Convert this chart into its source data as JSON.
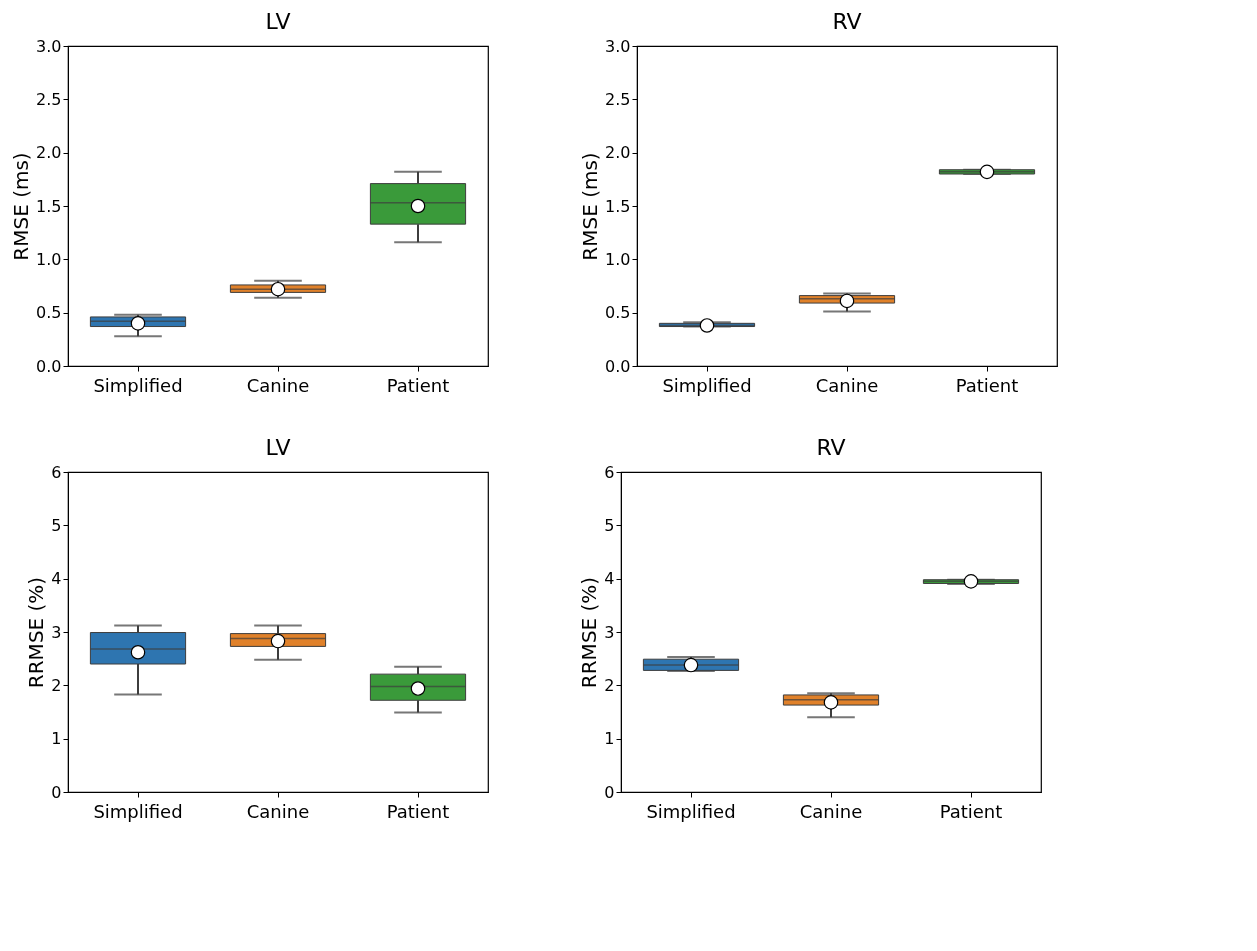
{
  "chart_data": [
    {
      "type": "box",
      "title": "LV",
      "ylabel": "RMSE (ms)",
      "categories": [
        "Simplified",
        "Canine",
        "Patient"
      ],
      "colors": [
        "#2e75b0",
        "#e0812a",
        "#3a9a3a"
      ],
      "ylim": [
        0,
        3
      ],
      "yticks": [
        {
          "value": 0,
          "label": "0.0"
        },
        {
          "value": 0.5,
          "label": "0.5"
        },
        {
          "value": 1,
          "label": "1.0"
        },
        {
          "value": 1.5,
          "label": "1.5"
        },
        {
          "value": 2,
          "label": "2.0"
        },
        {
          "value": 2.5,
          "label": "2.5"
        },
        {
          "value": 3,
          "label": "3.0"
        }
      ],
      "grid": false,
      "legend": false,
      "boxes": [
        {
          "low": 0.28,
          "q1": 0.37,
          "median": 0.42,
          "q3": 0.46,
          "high": 0.48,
          "mean": 0.4
        },
        {
          "low": 0.64,
          "q1": 0.69,
          "median": 0.72,
          "q3": 0.76,
          "high": 0.8,
          "mean": 0.72
        },
        {
          "low": 1.16,
          "q1": 1.33,
          "median": 1.53,
          "q3": 1.71,
          "high": 1.82,
          "mean": 1.5
        }
      ]
    },
    {
      "type": "box",
      "title": "RV",
      "ylabel": "RMSE (ms)",
      "categories": [
        "Simplified",
        "Canine",
        "Patient"
      ],
      "colors": [
        "#2e75b0",
        "#e0812a",
        "#3a9a3a"
      ],
      "ylim": [
        0,
        3
      ],
      "yticks": [
        {
          "value": 0,
          "label": "0.0"
        },
        {
          "value": 0.5,
          "label": "0.5"
        },
        {
          "value": 1,
          "label": "1.0"
        },
        {
          "value": 1.5,
          "label": "1.5"
        },
        {
          "value": 2,
          "label": "2.0"
        },
        {
          "value": 2.5,
          "label": "2.5"
        },
        {
          "value": 3,
          "label": "3.0"
        }
      ],
      "grid": false,
      "legend": false,
      "boxes": [
        {
          "low": 0.37,
          "q1": 0.37,
          "median": 0.38,
          "q3": 0.4,
          "high": 0.41,
          "mean": 0.38
        },
        {
          "low": 0.51,
          "q1": 0.59,
          "median": 0.63,
          "q3": 0.66,
          "high": 0.68,
          "mean": 0.61
        },
        {
          "low": 1.8,
          "q1": 1.8,
          "median": 1.82,
          "q3": 1.84,
          "high": 1.84,
          "mean": 1.82
        }
      ]
    },
    {
      "type": "box",
      "title": "LV",
      "ylabel": "RRMSE (%)",
      "categories": [
        "Simplified",
        "Canine",
        "Patient"
      ],
      "colors": [
        "#2e75b0",
        "#e0812a",
        "#3a9a3a"
      ],
      "ylim": [
        0,
        6
      ],
      "yticks": [
        0,
        1,
        2,
        3,
        4,
        5,
        6
      ],
      "grid": false,
      "legend": false,
      "boxes": [
        {
          "low": 1.83,
          "q1": 2.4,
          "median": 2.68,
          "q3": 2.99,
          "high": 3.12,
          "mean": 2.62
        },
        {
          "low": 2.48,
          "q1": 2.73,
          "median": 2.88,
          "q3": 2.97,
          "high": 3.12,
          "mean": 2.83
        },
        {
          "low": 1.49,
          "q1": 1.72,
          "median": 1.98,
          "q3": 2.21,
          "high": 2.35,
          "mean": 1.94
        }
      ]
    },
    {
      "type": "box",
      "title": "RV",
      "ylabel": "RRMSE (%)",
      "categories": [
        "Simplified",
        "Canine",
        "Patient"
      ],
      "colors": [
        "#2e75b0",
        "#e0812a",
        "#3a9a3a"
      ],
      "ylim": [
        0,
        6
      ],
      "yticks": [
        0,
        1,
        2,
        3,
        4,
        5,
        6
      ],
      "grid": false,
      "legend": false,
      "boxes": [
        {
          "low": 2.27,
          "q1": 2.28,
          "median": 2.38,
          "q3": 2.49,
          "high": 2.53,
          "mean": 2.38
        },
        {
          "low": 1.4,
          "q1": 1.63,
          "median": 1.73,
          "q3": 1.82,
          "high": 1.85,
          "mean": 1.68
        },
        {
          "low": 3.9,
          "q1": 3.91,
          "median": 3.95,
          "q3": 3.98,
          "high": 3.98,
          "mean": 3.95
        }
      ]
    }
  ]
}
